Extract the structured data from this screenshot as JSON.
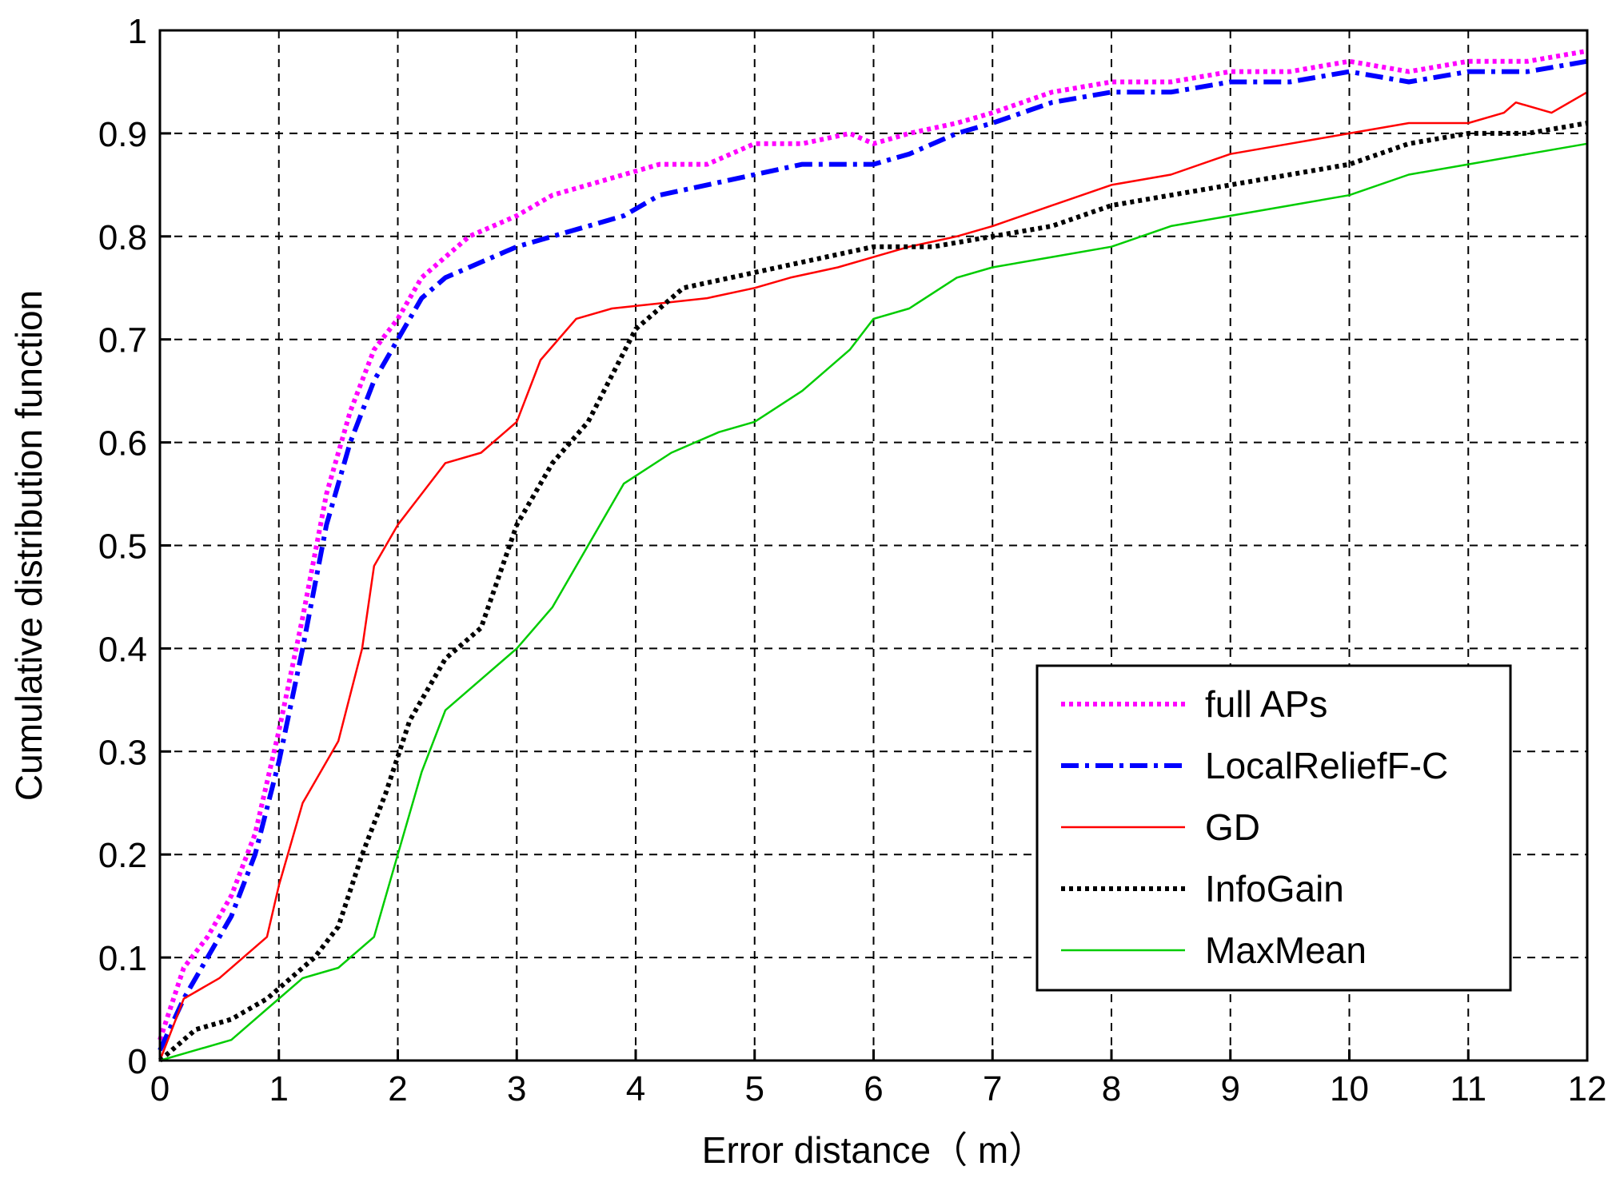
{
  "chart_data": {
    "type": "line",
    "title": "",
    "xlabel": "Error distance（ m）",
    "ylabel": "Cumulative distribution function",
    "xlim": [
      0,
      12
    ],
    "ylim": [
      0,
      1
    ],
    "xticks": [
      "0",
      "1",
      "2",
      "3",
      "4",
      "5",
      "6",
      "7",
      "8",
      "9",
      "10",
      "11",
      "12"
    ],
    "yticks": [
      "0",
      "0.1",
      "0.2",
      "0.3",
      "0.4",
      "0.5",
      "0.6",
      "0.7",
      "0.8",
      "0.9",
      "1"
    ],
    "grid": true,
    "legend_position": "bottom-right",
    "series": [
      {
        "name": "full APs",
        "color": "#ff00ff",
        "style": "dotted",
        "x": [
          0,
          0.2,
          0.4,
          0.6,
          0.8,
          1.0,
          1.2,
          1.4,
          1.6,
          1.8,
          2.0,
          2.2,
          2.4,
          2.6,
          2.8,
          3.0,
          3.3,
          3.6,
          3.9,
          4.2,
          4.6,
          5.0,
          5.4,
          5.8,
          6.0,
          6.3,
          6.7,
          7.0,
          7.5,
          8.0,
          8.5,
          9.0,
          9.5,
          10.0,
          10.5,
          11.0,
          11.5,
          12.0
        ],
        "y": [
          0.02,
          0.09,
          0.12,
          0.16,
          0.22,
          0.32,
          0.43,
          0.55,
          0.63,
          0.69,
          0.72,
          0.76,
          0.78,
          0.8,
          0.81,
          0.82,
          0.84,
          0.85,
          0.86,
          0.87,
          0.87,
          0.89,
          0.89,
          0.9,
          0.89,
          0.9,
          0.91,
          0.92,
          0.94,
          0.95,
          0.95,
          0.96,
          0.96,
          0.97,
          0.96,
          0.97,
          0.97,
          0.98
        ]
      },
      {
        "name": "LocalReliefF-C",
        "color": "#0000ff",
        "style": "dashdot",
        "x": [
          0,
          0.2,
          0.4,
          0.6,
          0.8,
          1.0,
          1.2,
          1.4,
          1.6,
          1.8,
          2.0,
          2.2,
          2.4,
          2.6,
          2.8,
          3.0,
          3.3,
          3.6,
          3.9,
          4.2,
          4.6,
          5.0,
          5.4,
          5.8,
          6.0,
          6.3,
          6.7,
          7.0,
          7.5,
          8.0,
          8.5,
          9.0,
          9.5,
          10.0,
          10.5,
          11.0,
          11.5,
          12.0
        ],
        "y": [
          0.01,
          0.06,
          0.1,
          0.14,
          0.2,
          0.29,
          0.4,
          0.52,
          0.6,
          0.66,
          0.7,
          0.74,
          0.76,
          0.77,
          0.78,
          0.79,
          0.8,
          0.81,
          0.82,
          0.84,
          0.85,
          0.86,
          0.87,
          0.87,
          0.87,
          0.88,
          0.9,
          0.91,
          0.93,
          0.94,
          0.94,
          0.95,
          0.95,
          0.96,
          0.95,
          0.96,
          0.96,
          0.97
        ]
      },
      {
        "name": "GD",
        "color": "#ff0000",
        "style": "solid",
        "x": [
          0,
          0.2,
          0.5,
          0.9,
          1.0,
          1.2,
          1.5,
          1.7,
          1.8,
          2.0,
          2.2,
          2.4,
          2.7,
          3.0,
          3.2,
          3.5,
          3.8,
          4.2,
          4.6,
          5.0,
          5.3,
          5.7,
          6.0,
          6.3,
          6.7,
          7.0,
          7.5,
          8.0,
          8.5,
          9.0,
          9.5,
          10.0,
          10.5,
          11.0,
          11.3,
          11.4,
          11.7,
          12.0
        ],
        "y": [
          0.0,
          0.06,
          0.08,
          0.12,
          0.17,
          0.25,
          0.31,
          0.4,
          0.48,
          0.52,
          0.55,
          0.58,
          0.59,
          0.62,
          0.68,
          0.72,
          0.73,
          0.735,
          0.74,
          0.75,
          0.76,
          0.77,
          0.78,
          0.79,
          0.8,
          0.81,
          0.83,
          0.85,
          0.86,
          0.88,
          0.89,
          0.9,
          0.91,
          0.91,
          0.92,
          0.93,
          0.92,
          0.94
        ]
      },
      {
        "name": "InfoGain",
        "color": "#000000",
        "style": "dotted",
        "x": [
          0,
          0.3,
          0.6,
          0.9,
          1.1,
          1.3,
          1.5,
          1.7,
          1.9,
          2.1,
          2.4,
          2.7,
          3.0,
          3.3,
          3.6,
          4.0,
          4.4,
          4.8,
          5.2,
          5.6,
          6.0,
          6.5,
          7.0,
          7.5,
          8.0,
          8.5,
          9.0,
          9.5,
          10.0,
          10.5,
          11.0,
          11.5,
          12.0
        ],
        "y": [
          0.0,
          0.03,
          0.04,
          0.06,
          0.08,
          0.1,
          0.13,
          0.2,
          0.26,
          0.33,
          0.39,
          0.42,
          0.52,
          0.58,
          0.62,
          0.71,
          0.75,
          0.76,
          0.77,
          0.78,
          0.79,
          0.79,
          0.8,
          0.81,
          0.83,
          0.84,
          0.85,
          0.86,
          0.87,
          0.89,
          0.9,
          0.9,
          0.91
        ]
      },
      {
        "name": "MaxMean",
        "color": "#00cc00",
        "style": "solid",
        "x": [
          0,
          0.3,
          0.6,
          0.9,
          1.2,
          1.5,
          1.8,
          2.0,
          2.2,
          2.4,
          2.7,
          3.0,
          3.3,
          3.6,
          3.9,
          4.3,
          4.7,
          5.0,
          5.4,
          5.8,
          6.0,
          6.3,
          6.7,
          7.0,
          7.5,
          8.0,
          8.5,
          9.0,
          9.5,
          10.0,
          10.5,
          11.0,
          11.5,
          12.0
        ],
        "y": [
          0.0,
          0.01,
          0.02,
          0.05,
          0.08,
          0.09,
          0.12,
          0.2,
          0.28,
          0.34,
          0.37,
          0.4,
          0.44,
          0.5,
          0.56,
          0.59,
          0.61,
          0.62,
          0.65,
          0.69,
          0.72,
          0.73,
          0.76,
          0.77,
          0.78,
          0.79,
          0.81,
          0.82,
          0.83,
          0.84,
          0.86,
          0.87,
          0.88,
          0.89
        ]
      }
    ]
  }
}
